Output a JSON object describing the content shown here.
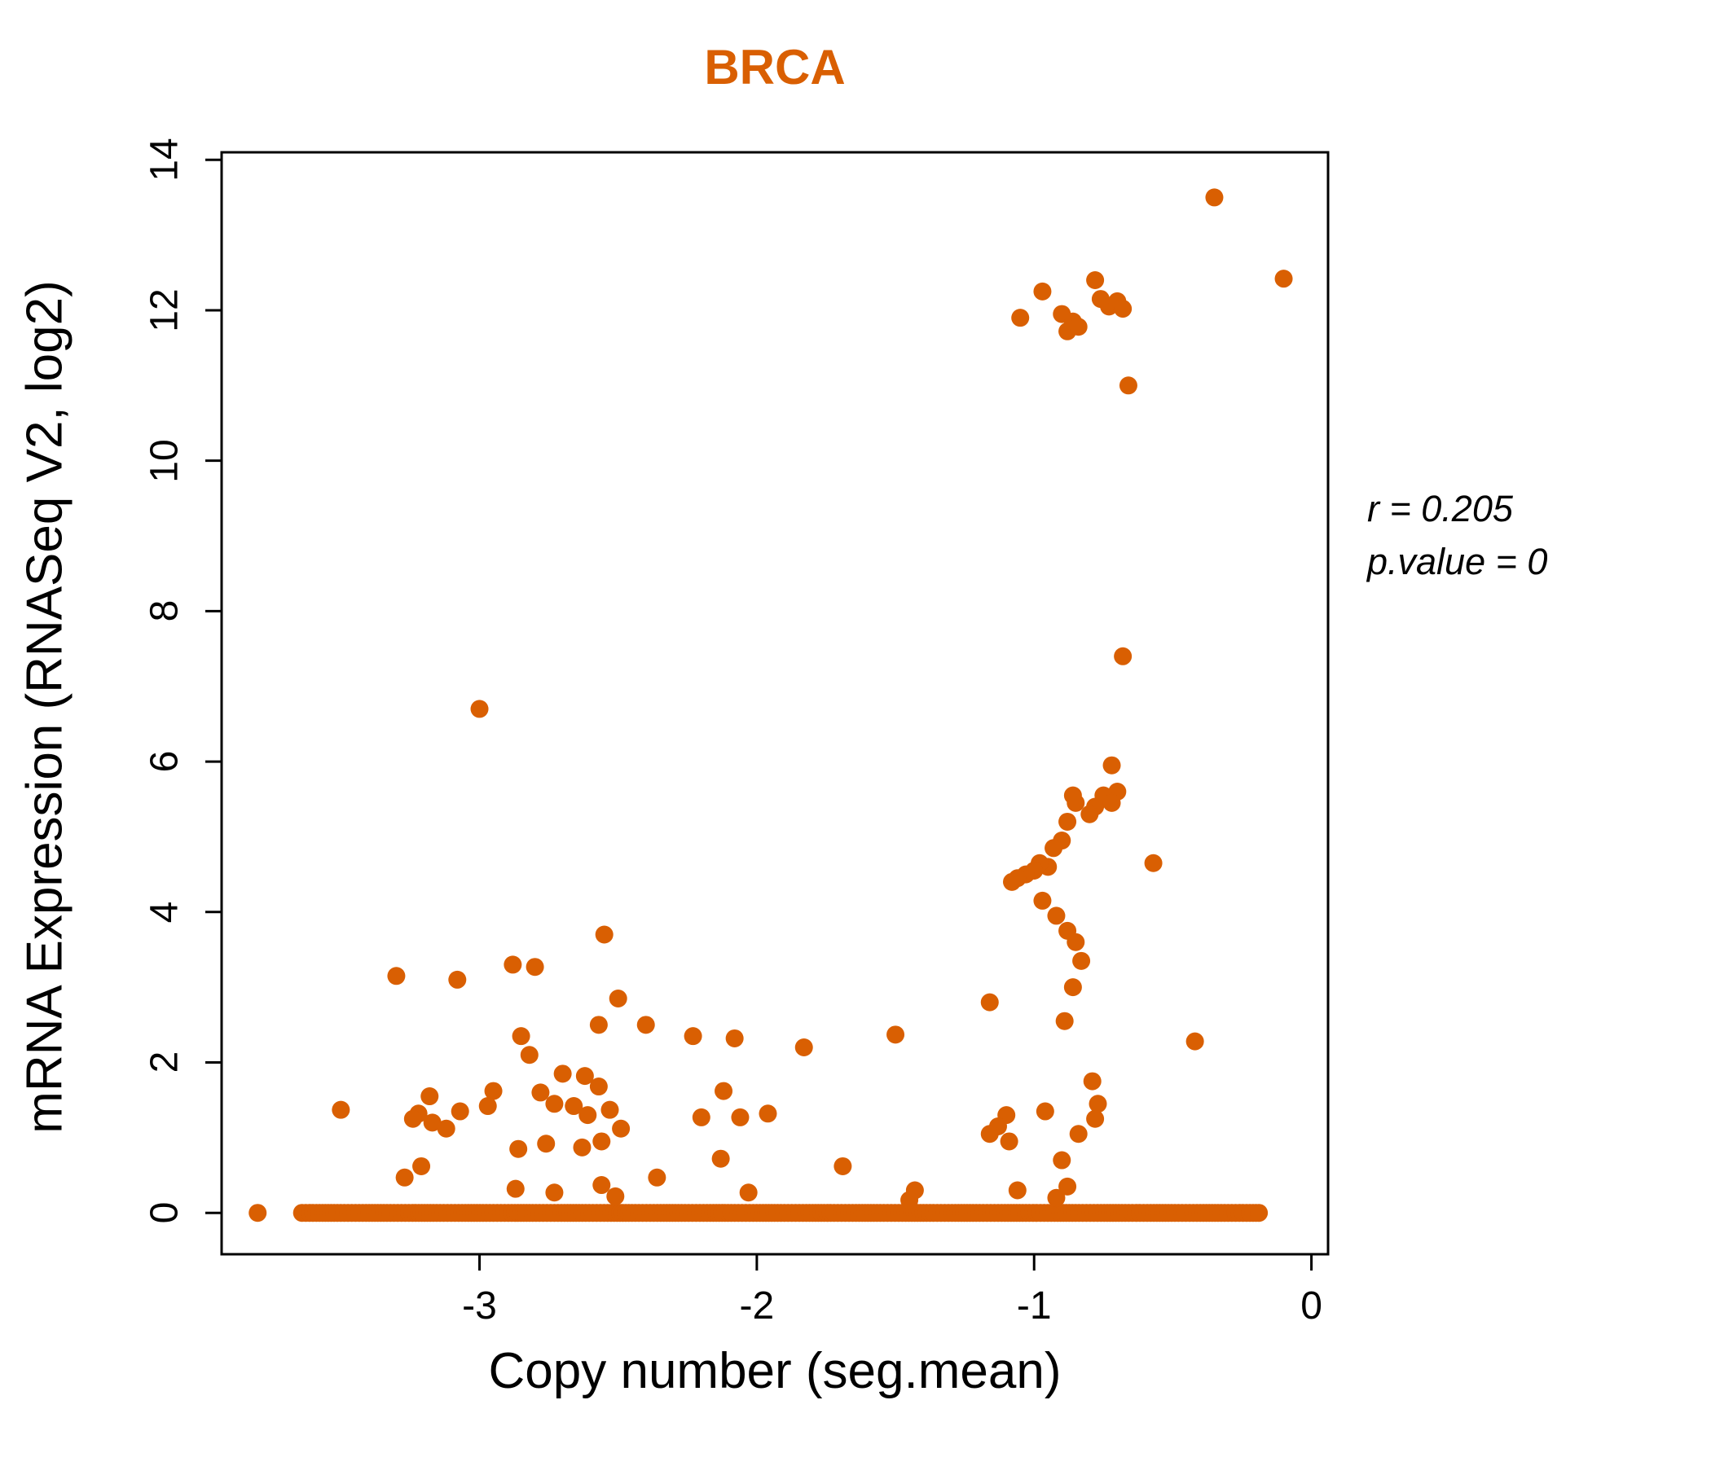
{
  "chart_data": {
    "type": "scatter",
    "title": "BRCA",
    "xlabel": "Copy number (seg.mean)",
    "ylabel": "mRNA Expression (RNASeq V2, log2)",
    "annotation": {
      "r_label": "r = 0.205",
      "p_label": "p.value = 0"
    },
    "point_color": "#D95F02",
    "title_color": "#D95F02",
    "xlim": [
      -3.93,
      0.06
    ],
    "ylim": [
      -0.55,
      14.1
    ],
    "xticks": [
      -3,
      -2,
      -1,
      0
    ],
    "yticks": [
      0,
      2,
      4,
      6,
      8,
      10,
      12,
      14
    ],
    "grid": false,
    "legend": "none",
    "points": [
      [
        -0.35,
        13.5
      ],
      [
        -0.1,
        12.42
      ],
      [
        -1.05,
        11.9
      ],
      [
        -0.97,
        12.25
      ],
      [
        -0.9,
        11.95
      ],
      [
        -0.88,
        11.72
      ],
      [
        -0.86,
        11.85
      ],
      [
        -0.84,
        11.78
      ],
      [
        -0.78,
        12.4
      ],
      [
        -0.76,
        12.15
      ],
      [
        -0.73,
        12.05
      ],
      [
        -0.7,
        12.12
      ],
      [
        -0.68,
        12.02
      ],
      [
        -0.66,
        11.0
      ],
      [
        -0.68,
        7.4
      ],
      [
        -3.0,
        6.7
      ],
      [
        -0.72,
        5.95
      ],
      [
        -0.7,
        5.6
      ],
      [
        -0.75,
        5.55
      ],
      [
        -0.78,
        5.4
      ],
      [
        -0.72,
        5.45
      ],
      [
        -0.8,
        5.3
      ],
      [
        -0.85,
        5.45
      ],
      [
        -0.86,
        5.55
      ],
      [
        -0.88,
        5.2
      ],
      [
        -0.9,
        4.95
      ],
      [
        -0.93,
        4.85
      ],
      [
        -0.95,
        4.6
      ],
      [
        -0.98,
        4.65
      ],
      [
        -1.0,
        4.55
      ],
      [
        -1.03,
        4.5
      ],
      [
        -1.06,
        4.45
      ],
      [
        -1.08,
        4.4
      ],
      [
        -0.97,
        4.15
      ],
      [
        -0.92,
        3.95
      ],
      [
        -0.88,
        3.75
      ],
      [
        -0.85,
        3.6
      ],
      [
        -0.83,
        3.35
      ],
      [
        -0.86,
        3.0
      ],
      [
        -1.16,
        2.8
      ],
      [
        -0.89,
        2.55
      ],
      [
        -0.57,
        4.65
      ],
      [
        -1.5,
        2.37
      ],
      [
        -0.42,
        2.28
      ],
      [
        -1.1,
        1.3
      ],
      [
        -1.13,
        1.15
      ],
      [
        -1.16,
        1.05
      ],
      [
        -1.09,
        0.95
      ],
      [
        -0.96,
        1.35
      ],
      [
        -0.9,
        0.7
      ],
      [
        -0.84,
        1.05
      ],
      [
        -0.79,
        1.75
      ],
      [
        -0.77,
        1.45
      ],
      [
        -0.78,
        1.25
      ],
      [
        -1.06,
        0.3
      ],
      [
        -0.92,
        0.2
      ],
      [
        -0.88,
        0.35
      ],
      [
        -2.55,
        3.7
      ],
      [
        -3.3,
        3.15
      ],
      [
        -3.08,
        3.1
      ],
      [
        -2.88,
        3.3
      ],
      [
        -2.8,
        3.27
      ],
      [
        -2.5,
        2.85
      ],
      [
        -2.4,
        2.5
      ],
      [
        -2.57,
        2.5
      ],
      [
        -2.23,
        2.35
      ],
      [
        -2.08,
        2.32
      ],
      [
        -1.83,
        2.2
      ],
      [
        -2.85,
        2.35
      ],
      [
        -2.82,
        2.1
      ],
      [
        -2.95,
        1.62
      ],
      [
        -2.7,
        1.85
      ],
      [
        -2.62,
        1.82
      ],
      [
        -2.57,
        1.68
      ],
      [
        -2.78,
        1.6
      ],
      [
        -3.18,
        1.55
      ],
      [
        -3.22,
        1.32
      ],
      [
        -3.17,
        1.2
      ],
      [
        -3.12,
        1.12
      ],
      [
        -3.07,
        1.35
      ],
      [
        -3.24,
        1.25
      ],
      [
        -2.97,
        1.42
      ],
      [
        -2.73,
        1.45
      ],
      [
        -2.66,
        1.42
      ],
      [
        -2.61,
        1.3
      ],
      [
        -2.53,
        1.37
      ],
      [
        -2.49,
        1.12
      ],
      [
        -2.56,
        0.95
      ],
      [
        -2.63,
        0.87
      ],
      [
        -2.76,
        0.92
      ],
      [
        -2.86,
        0.85
      ],
      [
        -2.2,
        1.27
      ],
      [
        -2.12,
        1.62
      ],
      [
        -2.06,
        1.27
      ],
      [
        -2.13,
        0.72
      ],
      [
        -1.96,
        1.32
      ],
      [
        -3.5,
        1.37
      ],
      [
        -3.27,
        0.47
      ],
      [
        -3.21,
        0.62
      ],
      [
        -2.36,
        0.47
      ],
      [
        -2.87,
        0.32
      ],
      [
        -2.73,
        0.27
      ],
      [
        -2.56,
        0.37
      ],
      [
        -2.51,
        0.22
      ],
      [
        -2.03,
        0.27
      ],
      [
        -1.69,
        0.62
      ],
      [
        -1.43,
        0.3
      ],
      [
        -1.45,
        0.17
      ]
    ],
    "baseline": {
      "y": 0,
      "segments": [
        {
          "from": -3.8,
          "to": -3.8,
          "count": 1
        },
        {
          "from": -3.64,
          "to": -0.19,
          "count": 290
        }
      ]
    }
  }
}
